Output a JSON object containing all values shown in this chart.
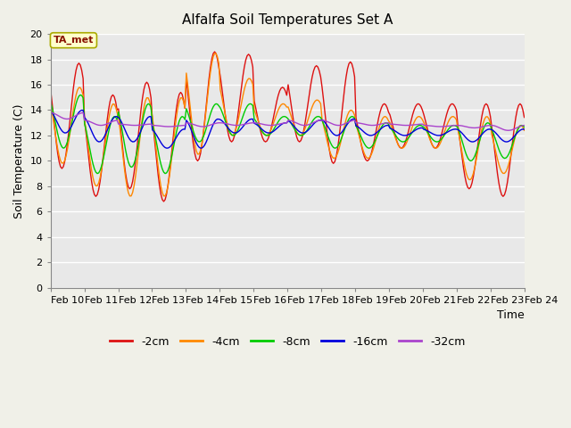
{
  "title": "Alfalfa Soil Temperatures Set A",
  "xlabel": "Time",
  "ylabel": "Soil Temperature (C)",
  "xlim": [
    0,
    14
  ],
  "ylim": [
    0,
    20
  ],
  "yticks": [
    0,
    2,
    4,
    6,
    8,
    10,
    12,
    14,
    16,
    18,
    20
  ],
  "xtick_labels": [
    "Feb 10",
    "Feb 11",
    "Feb 12",
    "Feb 13",
    "Feb 14",
    "Feb 15",
    "Feb 16",
    "Feb 17",
    "Feb 18",
    "Feb 19",
    "Feb 20",
    "Feb 21",
    "Feb 22",
    "Feb 23",
    "Feb 24"
  ],
  "bg_color": "#e8e8e8",
  "fig_color": "#f0f0e8",
  "colors": {
    "-2cm": "#dd1111",
    "-4cm": "#ff8800",
    "-8cm": "#00cc00",
    "-16cm": "#0000dd",
    "-32cm": "#aa44cc"
  },
  "annotation_box": {
    "text": "TA_met",
    "color": "#881100",
    "bg": "#ffffcc",
    "border": "#aaaa00"
  },
  "n_per_day": 24,
  "n_days": 14
}
